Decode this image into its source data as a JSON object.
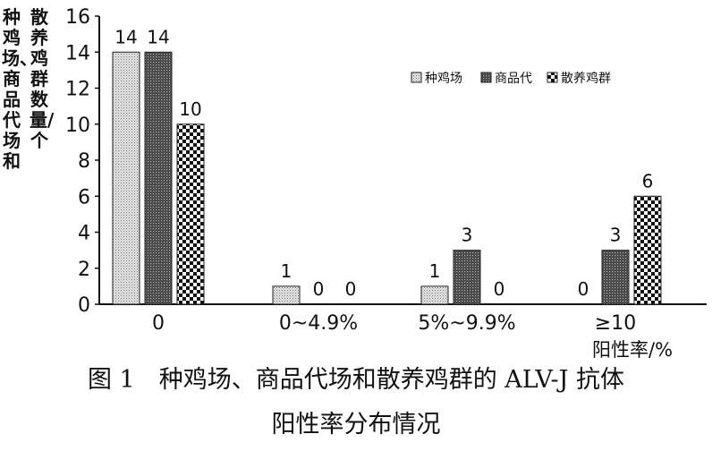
{
  "chart_data": {
    "type": "bar",
    "categories": [
      "0",
      "0~4.9%",
      "5%~9.9%",
      "≥10"
    ],
    "series": [
      {
        "name": "种鸡场",
        "values": [
          14,
          1,
          1,
          0
        ],
        "pattern": "light-dots"
      },
      {
        "name": "商品代",
        "values": [
          14,
          0,
          3,
          3
        ],
        "pattern": "dark-dots"
      },
      {
        "name": "散养鸡群",
        "values": [
          10,
          0,
          0,
          6
        ],
        "pattern": "checker"
      }
    ],
    "xlabel": "阳性率/%",
    "ylabel_lines": [
      "种鸡场、商品代场和",
      "散养鸡群数量/个"
    ],
    "ylim": [
      0,
      16
    ],
    "yticks": [
      0,
      2,
      4,
      6,
      8,
      10,
      12,
      14,
      16
    ],
    "legend_position": "top-right",
    "grid": false
  },
  "caption": {
    "line1": "图 1　种鸡场、商品代场和散养鸡群的 ALV-J 抗体",
    "line2": "阳性率分布情况"
  }
}
